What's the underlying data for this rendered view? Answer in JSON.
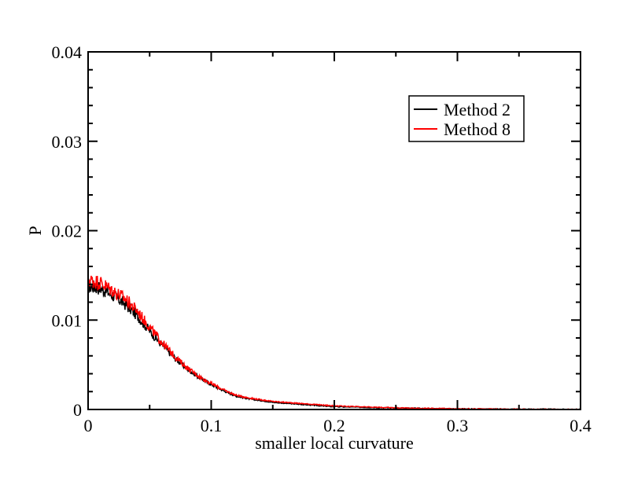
{
  "chart_data": {
    "type": "line",
    "title": "",
    "xlabel": "smaller local curvature",
    "ylabel": "P",
    "xlim": [
      0,
      0.4
    ],
    "ylim": [
      0,
      0.04
    ],
    "x_ticks": [
      0,
      0.1,
      0.2,
      0.3,
      0.4
    ],
    "x_tick_labels": [
      "0",
      "0.1",
      "0.2",
      "0.3",
      "0.4"
    ],
    "y_ticks": [
      0,
      0.01,
      0.02,
      0.03,
      0.04
    ],
    "y_tick_labels": [
      "0",
      "0.01",
      "0.02",
      "0.03",
      "0.04"
    ],
    "grid": false,
    "legend_position": "top-right",
    "series": [
      {
        "name": "Method 2",
        "color": "#000000",
        "x": [
          0,
          0.01,
          0.02,
          0.03,
          0.04,
          0.05,
          0.06,
          0.07,
          0.08,
          0.09,
          0.1,
          0.11,
          0.12,
          0.13,
          0.14,
          0.15,
          0.16,
          0.17,
          0.18,
          0.19,
          0.2,
          0.22,
          0.24,
          0.26,
          0.28,
          0.3,
          0.32,
          0.34,
          0.36,
          0.38,
          0.4
        ],
        "y": [
          0.0138,
          0.0136,
          0.0128,
          0.0118,
          0.0105,
          0.0088,
          0.0072,
          0.0058,
          0.0046,
          0.0036,
          0.0028,
          0.0021,
          0.0015,
          0.0012,
          0.001,
          0.0008,
          0.0007,
          0.0006,
          0.0005,
          0.0004,
          0.0003,
          0.00025,
          0.0002,
          0.00015,
          0.0001,
          8e-05,
          5e-05,
          4e-05,
          3e-05,
          2e-05,
          1e-05
        ]
      },
      {
        "name": "Method 8",
        "color": "#ff0000",
        "x": [
          0,
          0.01,
          0.02,
          0.03,
          0.04,
          0.05,
          0.06,
          0.07,
          0.08,
          0.09,
          0.1,
          0.11,
          0.12,
          0.13,
          0.14,
          0.15,
          0.16,
          0.17,
          0.18,
          0.19,
          0.2,
          0.22,
          0.24,
          0.26,
          0.28,
          0.3,
          0.32,
          0.34,
          0.36,
          0.38,
          0.4
        ],
        "y": [
          0.0145,
          0.0142,
          0.0133,
          0.0124,
          0.011,
          0.0092,
          0.0075,
          0.006,
          0.0047,
          0.0037,
          0.0029,
          0.0022,
          0.0016,
          0.0013,
          0.0011,
          0.0009,
          0.0008,
          0.0007,
          0.0006,
          0.0005,
          0.0004,
          0.0003,
          0.00022,
          0.00016,
          0.00012,
          9e-05,
          6e-05,
          4e-05,
          3e-05,
          2e-05,
          1e-05
        ]
      }
    ]
  }
}
